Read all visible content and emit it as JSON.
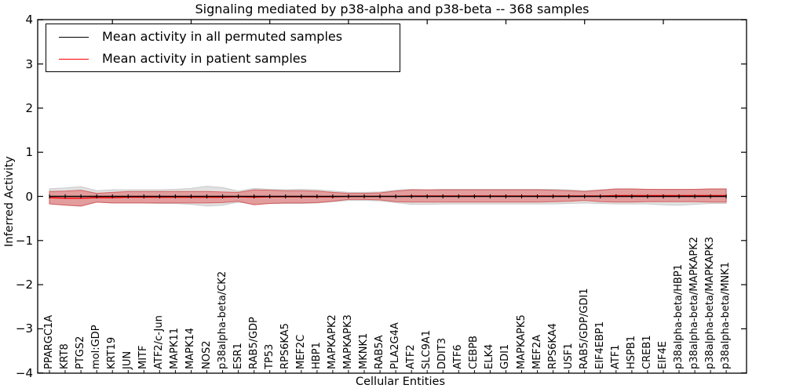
{
  "chart": {
    "title": "Signaling mediated by p38-alpha and p38-beta -- 368 samples",
    "xlabel": "Cellular Entities",
    "ylabel": "Inferred Activity"
  },
  "legend": {
    "items": [
      {
        "label": "Mean activity in all permuted samples",
        "color": "#000000"
      },
      {
        "label": "Mean activity in patient samples",
        "color": "#ff0000"
      }
    ]
  },
  "chart_data": {
    "type": "line",
    "title": "Signaling mediated by p38-alpha and p38-beta -- 368 samples",
    "xlabel": "Cellular Entities",
    "ylabel": "Inferred Activity",
    "ylim": [
      -4,
      4
    ],
    "grid": false,
    "legend_position": "upper left",
    "yticks": {
      "values": [
        4,
        3,
        2,
        1,
        0,
        -1,
        -2,
        -3,
        -4
      ],
      "labels": [
        "4",
        "3",
        "2",
        "1",
        "0",
        "−1",
        "−2",
        "−3",
        "−4"
      ]
    },
    "categories": [
      "PPARGC1A",
      "KRT8",
      "PTGS2",
      "mol:GDP",
      "KRT19",
      "JUN",
      "MITF",
      "ATF2/c-Jun",
      "MAPK11",
      "MAPK14",
      "NOS2",
      "p38alpha-beta/CK2",
      "ESR1",
      "RAB5/GDP",
      "TP53",
      "RPS6KA5",
      "MEF2C",
      "HBP1",
      "MAPKAPK2",
      "MAPKAPK3",
      "MKNK1",
      "RAB5A",
      "PLA2G4A",
      "ATF2",
      "SLC9A1",
      "DDIT3",
      "ATF6",
      "CEBPB",
      "ELK4",
      "GDI1",
      "MAPKAPK5",
      "MEF2A",
      "RPS6KA4",
      "USF1",
      "RAB5/GDP/GDI1",
      "EIF4EBP1",
      "ATF1",
      "HSPB1",
      "CREB1",
      "EIF4E",
      "p38alpha-beta/HBP1",
      "p38alpha-beta/MAPKAPK2",
      "p38alpha-beta/MAPKAPK3",
      "p38alpha-beta/MNK1"
    ],
    "series": [
      {
        "name": "Mean activity in all permuted samples",
        "color": "#000000",
        "marker": "plus",
        "values": [
          0,
          0,
          0,
          0,
          0,
          0,
          0,
          0,
          0,
          0,
          0,
          0,
          0,
          0,
          0,
          0,
          0,
          0,
          0,
          0,
          0,
          0,
          0,
          0,
          0,
          0,
          0,
          0,
          0,
          0,
          0,
          0,
          0,
          0,
          0,
          0,
          0,
          0,
          0,
          0,
          0,
          0,
          0,
          0
        ]
      },
      {
        "name": "Mean activity in patient samples",
        "color": "#ff0000",
        "marker": "none",
        "values": [
          -0.03,
          -0.04,
          -0.04,
          -0.03,
          -0.03,
          -0.02,
          -0.02,
          -0.02,
          -0.02,
          -0.02,
          -0.02,
          -0.02,
          -0.01,
          -0.02,
          -0.01,
          -0.01,
          -0.01,
          -0.01,
          -0.01,
          0,
          0,
          0,
          0,
          0.01,
          0.01,
          0.01,
          0.01,
          0.01,
          0.01,
          0.01,
          0.01,
          0.01,
          0.01,
          0.01,
          0.01,
          0.01,
          0.02,
          0.02,
          0.02,
          0.02,
          0.02,
          0.02,
          0.02,
          0.02
        ]
      }
    ],
    "bands": [
      {
        "name": "permuted-samples-std-band",
        "fill": "#dcdcdc",
        "edge": "#c9c9c9",
        "opacity": 0.85,
        "upper": [
          0.17,
          0.19,
          0.22,
          0.13,
          0.15,
          0.15,
          0.15,
          0.15,
          0.16,
          0.18,
          0.23,
          0.2,
          0.12,
          0.18,
          0.16,
          0.15,
          0.16,
          0.15,
          0.12,
          0.09,
          0.09,
          0.1,
          0.14,
          0.16,
          0.15,
          0.16,
          0.16,
          0.16,
          0.16,
          0.16,
          0.16,
          0.16,
          0.16,
          0.15,
          0.13,
          0.15,
          0.16,
          0.16,
          0.16,
          0.15,
          0.15,
          0.16,
          0.16,
          0.16
        ],
        "lower": [
          -0.17,
          -0.19,
          -0.22,
          -0.13,
          -0.15,
          -0.15,
          -0.15,
          -0.16,
          -0.16,
          -0.18,
          -0.22,
          -0.2,
          -0.13,
          -0.18,
          -0.16,
          -0.16,
          -0.16,
          -0.15,
          -0.12,
          -0.09,
          -0.09,
          -0.1,
          -0.14,
          -0.18,
          -0.18,
          -0.17,
          -0.17,
          -0.17,
          -0.17,
          -0.17,
          -0.17,
          -0.17,
          -0.17,
          -0.16,
          -0.15,
          -0.16,
          -0.17,
          -0.17,
          -0.17,
          -0.19,
          -0.2,
          -0.18,
          -0.16,
          -0.16
        ]
      },
      {
        "name": "patient-samples-std-band",
        "fill": "#e74c4c",
        "edge": "#cf3a3a",
        "opacity": 0.45,
        "upper": [
          0.11,
          0.12,
          0.14,
          0.07,
          0.09,
          0.11,
          0.11,
          0.11,
          0.11,
          0.11,
          0.11,
          0.1,
          0.09,
          0.15,
          0.14,
          0.13,
          0.13,
          0.12,
          0.09,
          0.07,
          0.07,
          0.08,
          0.12,
          0.15,
          0.15,
          0.15,
          0.15,
          0.15,
          0.15,
          0.15,
          0.15,
          0.15,
          0.14,
          0.13,
          0.11,
          0.14,
          0.17,
          0.17,
          0.16,
          0.16,
          0.16,
          0.16,
          0.17,
          0.17
        ],
        "lower": [
          -0.17,
          -0.2,
          -0.22,
          -0.13,
          -0.15,
          -0.15,
          -0.15,
          -0.15,
          -0.15,
          -0.15,
          -0.15,
          -0.14,
          -0.11,
          -0.19,
          -0.16,
          -0.15,
          -0.15,
          -0.14,
          -0.11,
          -0.07,
          -0.07,
          -0.08,
          -0.12,
          -0.13,
          -0.13,
          -0.13,
          -0.13,
          -0.13,
          -0.13,
          -0.13,
          -0.13,
          -0.13,
          -0.12,
          -0.11,
          -0.09,
          -0.12,
          -0.13,
          -0.13,
          -0.12,
          -0.12,
          -0.12,
          -0.12,
          -0.13,
          -0.13
        ]
      }
    ]
  }
}
